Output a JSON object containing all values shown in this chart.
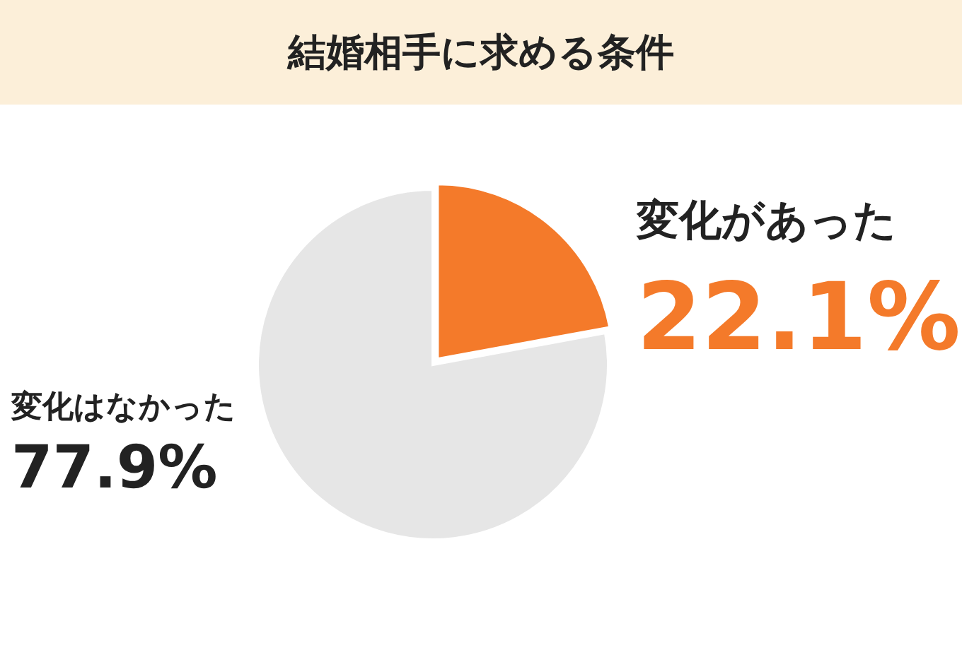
{
  "chart_data": {
    "type": "pie",
    "title": "結婚相手に求める条件",
    "categories": [
      "変化があった",
      "変化はなかった"
    ],
    "values": [
      22.1,
      77.9
    ],
    "value_labels": [
      "22.1%",
      "77.9%"
    ],
    "colors": [
      "#f47a2a",
      "#e6e6e6"
    ],
    "legend": false
  }
}
